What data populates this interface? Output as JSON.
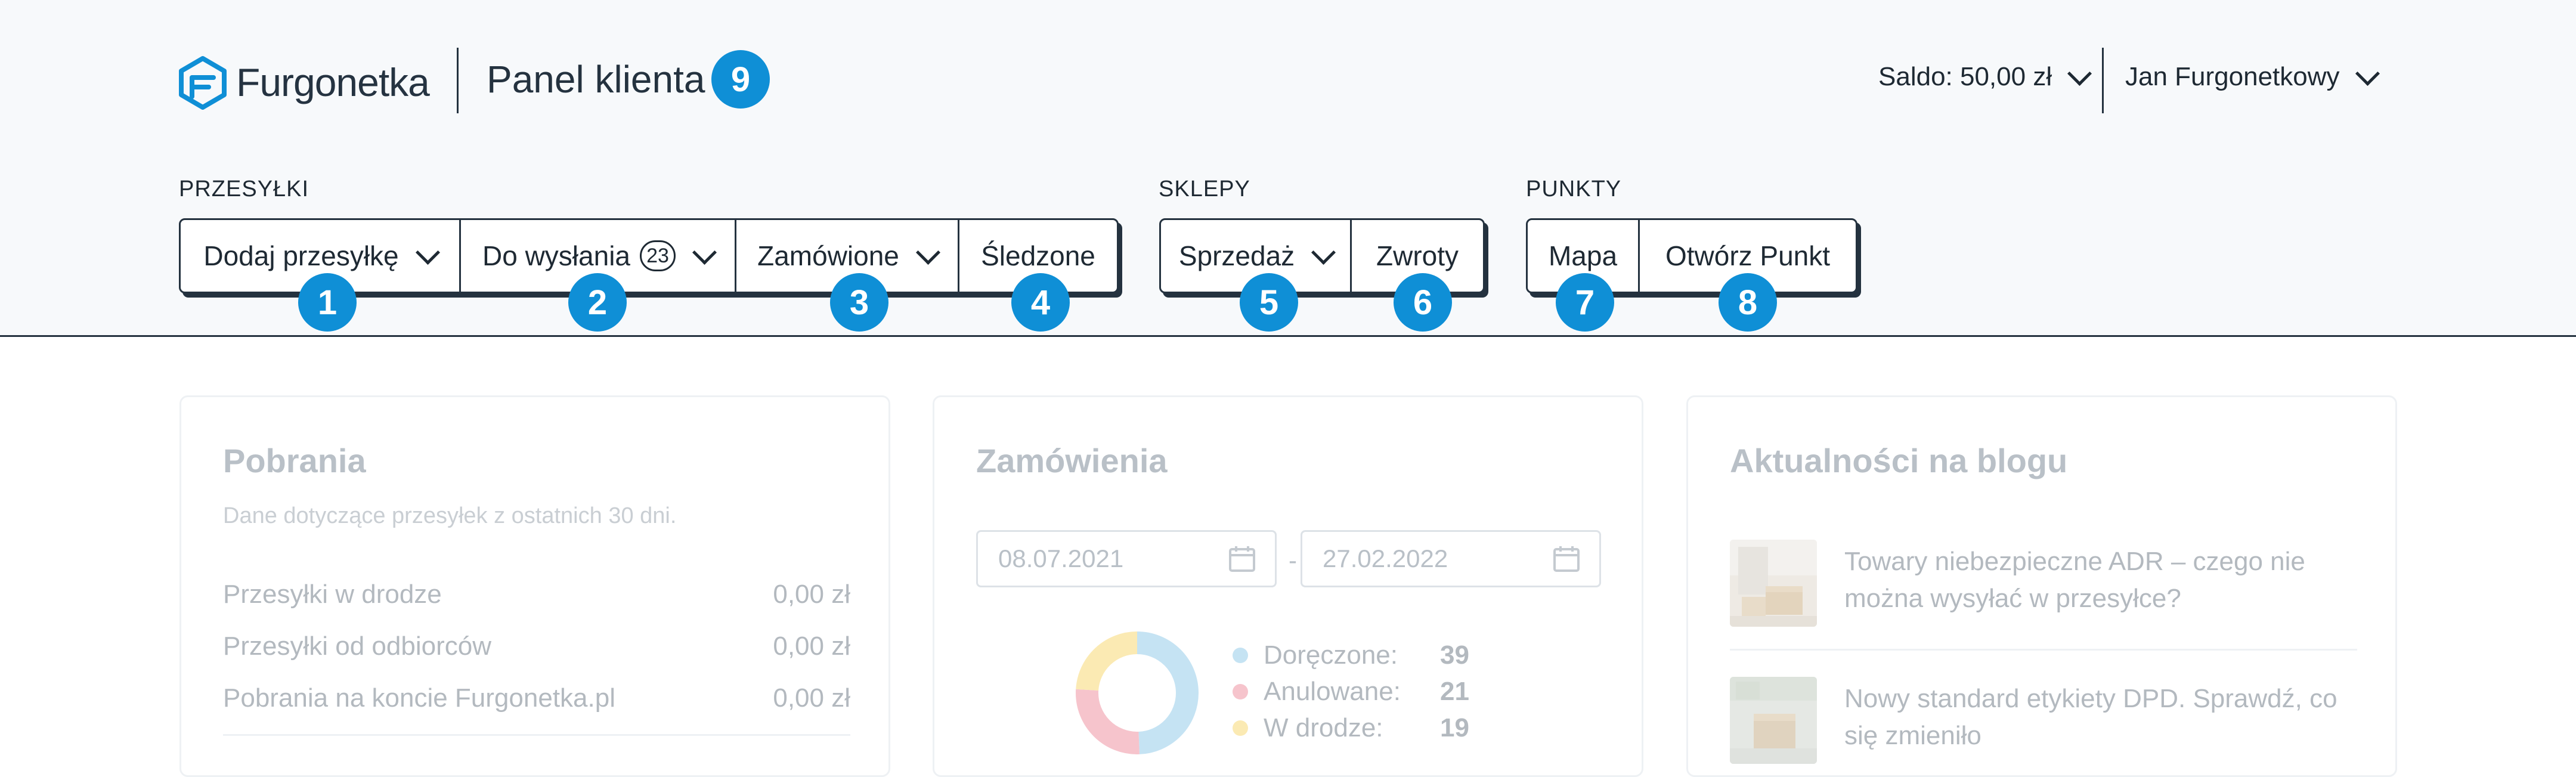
{
  "header": {
    "logo_text": "Furgonetka",
    "panel_title": "Panel klienta",
    "balance": "Saldo: 50,00 zł",
    "user_name": "Jan Furgonetkowy",
    "brand_color": "#0f8fd6"
  },
  "nav": {
    "shipments": {
      "label": "PRZESYŁKI",
      "buttons": [
        {
          "label": "Dodaj przesyłkę",
          "has_dropdown": true
        },
        {
          "label": "Do wysłania",
          "count": "23",
          "has_dropdown": true
        },
        {
          "label": "Zamówione",
          "has_dropdown": true
        },
        {
          "label": "Śledzone",
          "has_dropdown": false
        }
      ]
    },
    "shops": {
      "label": "SKLEPY",
      "buttons": [
        {
          "label": "Sprzedaż",
          "has_dropdown": true
        },
        {
          "label": "Zwroty",
          "has_dropdown": false
        }
      ]
    },
    "points": {
      "label": "PUNKTY",
      "buttons": [
        {
          "label": "Mapa",
          "has_dropdown": false
        },
        {
          "label": "Otwórz Punkt",
          "has_dropdown": false
        }
      ]
    }
  },
  "badges": [
    "1",
    "2",
    "3",
    "4",
    "5",
    "6",
    "7",
    "8",
    "9"
  ],
  "cod": {
    "title": "Pobrania",
    "subtitle": "Dane dotyczące przesyłek z ostatnich 30 dni.",
    "rows": [
      {
        "label": "Przesyłki w drodze",
        "value": "0,00 zł"
      },
      {
        "label": "Przesyłki od odbiorców",
        "value": "0,00 zł"
      },
      {
        "label": "Pobrania na koncie Furgonetka.pl",
        "value": "0,00 zł"
      }
    ]
  },
  "orders": {
    "title": "Zamówienia",
    "date_from": "08.07.2021",
    "date_separator": "-",
    "date_to": "27.02.2022",
    "stats": [
      {
        "label": "Doręczone:",
        "value": "39",
        "color": "#c5e3f3"
      },
      {
        "label": "Anulowane:",
        "value": "21",
        "color": "#f6c4cc"
      },
      {
        "label": "W drodze:",
        "value": "19",
        "color": "#fbeab3"
      }
    ]
  },
  "blog": {
    "title": "Aktualności na blogu",
    "posts": [
      {
        "text": "Towary niebezpieczne ADR – czego nie można wysyłać w przesyłce?"
      },
      {
        "text": "Nowy standard etykiety DPD. Sprawdź, co się zmieniło"
      }
    ]
  }
}
